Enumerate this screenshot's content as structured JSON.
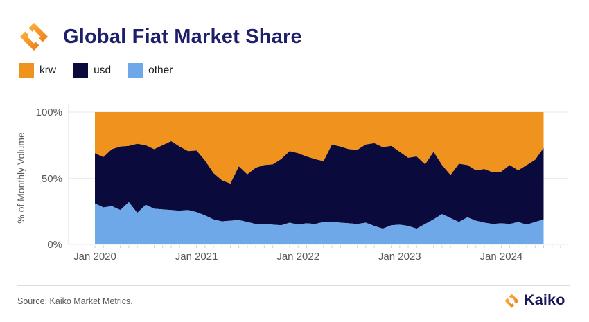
{
  "header": {
    "title": "Global Fiat Market Share"
  },
  "legend": {
    "items": [
      {
        "label": "krw",
        "color": "#F0921E"
      },
      {
        "label": "usd",
        "color": "#0A0A3D"
      },
      {
        "label": "other",
        "color": "#6FA8E8"
      }
    ]
  },
  "chart_data": {
    "type": "area",
    "stacking": "percent",
    "title": "Global Fiat Market Share",
    "xlabel": "",
    "ylabel": "% of Monthly Volume",
    "ylim": [
      0,
      100
    ],
    "grid": "horizontal",
    "legend_position": "top-left",
    "y_ticks": [
      {
        "label": "0%",
        "value": 0
      },
      {
        "label": "50%",
        "value": 50
      },
      {
        "label": "100%",
        "value": 100
      }
    ],
    "x_ticks": [
      {
        "label": "Jan 2020",
        "index": 0
      },
      {
        "label": "Jan 2021",
        "index": 12
      },
      {
        "label": "Jan 2022",
        "index": 24
      },
      {
        "label": "Jan 2023",
        "index": 36
      },
      {
        "label": "Jan 2024",
        "index": 48
      }
    ],
    "categories": [
      "2020-01",
      "2020-02",
      "2020-03",
      "2020-04",
      "2020-05",
      "2020-06",
      "2020-07",
      "2020-08",
      "2020-09",
      "2020-10",
      "2020-11",
      "2020-12",
      "2021-01",
      "2021-02",
      "2021-03",
      "2021-04",
      "2021-05",
      "2021-06",
      "2021-07",
      "2021-08",
      "2021-09",
      "2021-10",
      "2021-11",
      "2021-12",
      "2022-01",
      "2022-02",
      "2022-03",
      "2022-04",
      "2022-05",
      "2022-06",
      "2022-07",
      "2022-08",
      "2022-09",
      "2022-10",
      "2022-11",
      "2022-12",
      "2023-01",
      "2023-02",
      "2023-03",
      "2023-04",
      "2023-05",
      "2023-06",
      "2023-07",
      "2023-08",
      "2023-09",
      "2023-10",
      "2023-11",
      "2023-12",
      "2024-01",
      "2024-02",
      "2024-03",
      "2024-04",
      "2024-05",
      "2024-06"
    ],
    "series": [
      {
        "name": "krw",
        "color": "#F0921E",
        "values": [
          31,
          34,
          28,
          26,
          25.5,
          24,
          25,
          28,
          25,
          22,
          26,
          29.5,
          29,
          36.5,
          46,
          51.5,
          54,
          41,
          47,
          42,
          40,
          39.5,
          35.5,
          29.5,
          31,
          33.5,
          35.5,
          37,
          24.5,
          26,
          28,
          28.5,
          24.5,
          23.5,
          26.5,
          25.5,
          30,
          34.5,
          33.5,
          39.5,
          30,
          40,
          47.5,
          39,
          40,
          44,
          43,
          45.5,
          45,
          40,
          44,
          40,
          36,
          27
        ]
      },
      {
        "name": "usd",
        "color": "#0A0A3D",
        "values": [
          38,
          38,
          43,
          48,
          42.5,
          52,
          45,
          45,
          48.5,
          52,
          48.5,
          44.5,
          46.5,
          41.5,
          35,
          31,
          28,
          40.5,
          36,
          42.5,
          44.5,
          45.5,
          50,
          54,
          54,
          50.5,
          49,
          46,
          58.5,
          57.5,
          56,
          56,
          59,
          62.5,
          61.5,
          60,
          55,
          51.5,
          54.5,
          45,
          51,
          37,
          32.5,
          44,
          39.5,
          38,
          40.5,
          39,
          39,
          44.5,
          39,
          45,
          47,
          54
        ]
      },
      {
        "name": "other",
        "color": "#6FA8E8",
        "values": [
          31,
          28,
          29,
          26,
          32,
          24,
          30,
          27,
          26.5,
          26,
          25.5,
          26,
          24.5,
          22,
          19,
          17.5,
          18,
          18.5,
          17,
          15.5,
          15.5,
          15,
          14.5,
          16.5,
          15,
          16,
          15.5,
          17,
          17,
          16.5,
          16,
          15.5,
          16.5,
          14,
          12,
          14.5,
          15,
          14,
          12,
          15.5,
          19,
          23,
          20,
          17,
          20.5,
          18,
          16.5,
          15.5,
          16,
          15.5,
          17,
          15,
          17,
          19
        ]
      }
    ]
  },
  "footer": {
    "source": "Source: Kaiko Market Metrics.",
    "brand": "Kaiko"
  },
  "colors": {
    "title_navy": "#1E1E6B",
    "brand_navy": "#17175A",
    "logo_orange_light": "#FDB23D",
    "logo_orange_dark": "#EE7B16",
    "gridline": "#ececec",
    "axis_line": "#e3e3e3"
  }
}
